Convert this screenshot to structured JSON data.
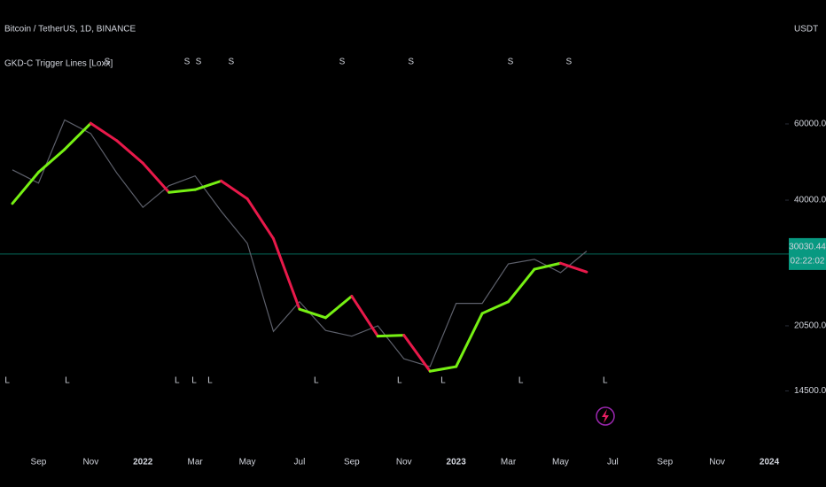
{
  "chart_data": {
    "type": "line",
    "title": "Bitcoin / TetherUS, 1D, BINANCE",
    "indicator": "GKD-C Trigger Lines [Loxx]",
    "currency": "USDT",
    "log_scale": true,
    "grid": false,
    "categories": [
      null,
      "Sep",
      null,
      "Nov",
      null,
      "2022",
      null,
      "Mar",
      null,
      "May",
      null,
      "Jul",
      null,
      "Sep",
      null,
      "Nov",
      null,
      "2023",
      null,
      "Mar",
      null,
      "May",
      null,
      "Jul",
      null,
      "Sep",
      null,
      "Nov",
      null,
      "2024"
    ],
    "ylim": [
      10500,
      116000
    ],
    "yticks": [
      {
        "value": 14500,
        "label": "14500.00"
      },
      {
        "value": 20500,
        "label": "20500.00"
      },
      {
        "value": 40000,
        "label": "40000.00"
      },
      {
        "value": 60000,
        "label": "60000.00"
      }
    ],
    "series": [
      {
        "color": "#5d606b",
        "values": [
          47000,
          43800,
          61300,
          57000,
          46200,
          38500,
          43200,
          45500,
          37700,
          31800,
          19900,
          23300,
          20000,
          19400,
          20500,
          17200,
          16500,
          23100,
          23100,
          28500,
          29200,
          27200,
          30500,
          null,
          null,
          null,
          null,
          null,
          null,
          null
        ]
      },
      {
        "values": [
          39300,
          46400,
          52400,
          60200,
          54900,
          48700,
          41700,
          42300,
          44300,
          40300,
          32600,
          22400,
          21400,
          24000,
          19400,
          19500,
          16100,
          16500,
          21900,
          23300,
          27700,
          28600,
          27300,
          null,
          null,
          null,
          null,
          null,
          null,
          null
        ],
        "colors": [
          "#76f013",
          "#76f013",
          "#76f013",
          "#e8194a",
          "#e8194a",
          "#e8194a",
          "#76f013",
          "#76f013",
          "#e8194a",
          "#e8194a",
          "#e8194a",
          "#76f013",
          "#76f013",
          "#e8194a",
          "#76f013",
          "#e8194a",
          "#76f013",
          "#76f013",
          "#76f013",
          "#76f013",
          "#76f013",
          "#e8194a",
          "#e8194a",
          null,
          null,
          null,
          null,
          null,
          null,
          null
        ]
      }
    ],
    "short_signals": [
      {
        "label": "S",
        "at": 3.63
      },
      {
        "label": "S",
        "at": 6.69
      },
      {
        "label": "S",
        "at": 7.13
      },
      {
        "label": "S",
        "at": 8.38
      },
      {
        "label": "S",
        "at": 12.63
      },
      {
        "label": "S",
        "at": 15.27
      },
      {
        "label": "S",
        "at": 19.08
      },
      {
        "label": "S",
        "at": 21.32
      }
    ],
    "long_signals": [
      {
        "label": "L",
        "at": -0.2
      },
      {
        "label": "L",
        "at": 2.1
      },
      {
        "label": "L",
        "at": 6.31
      },
      {
        "label": "L",
        "at": 6.96
      },
      {
        "label": "L",
        "at": 7.57
      },
      {
        "label": "L",
        "at": 11.64
      },
      {
        "label": "L",
        "at": 14.83
      },
      {
        "label": "L",
        "at": 16.5
      },
      {
        "label": "L",
        "at": 19.48
      },
      {
        "label": "L",
        "at": 22.71
      }
    ],
    "last_price": {
      "value": 30030.44,
      "label": "30030.44",
      "countdown": "02:22:02"
    }
  }
}
